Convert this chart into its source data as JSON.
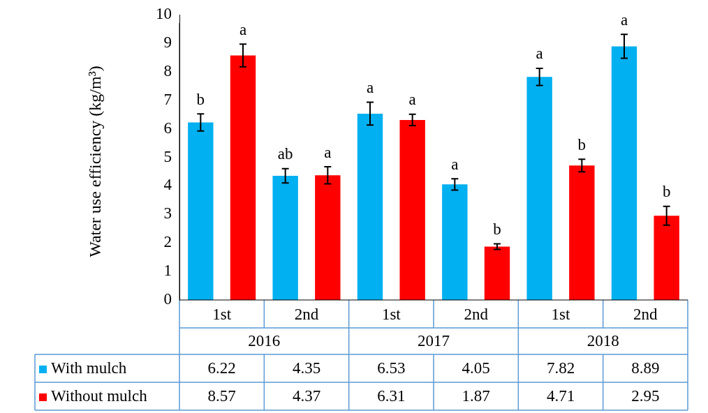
{
  "chart_data": {
    "type": "bar",
    "ylabel": "Water use efficiency (kg/m³)",
    "categories": [
      "1st",
      "2nd",
      "1st",
      "2nd",
      "1st",
      "2nd"
    ],
    "series": [
      {
        "name": "With mulch",
        "color": "#00b0f0",
        "values": [
          6.22,
          4.35,
          6.53,
          4.05,
          7.82,
          8.89
        ],
        "errors": [
          0.3,
          0.25,
          0.4,
          0.2,
          0.3,
          0.42
        ]
      },
      {
        "name": "Without mulch",
        "color": "#ff0000",
        "values": [
          8.57,
          4.37,
          6.31,
          1.87,
          4.71,
          2.95
        ],
        "errors": [
          0.4,
          0.3,
          0.2,
          0.1,
          0.22,
          0.33
        ]
      }
    ],
    "ylim": [
      0,
      10
    ],
    "yticks": [
      0,
      1,
      2,
      3,
      4,
      5,
      6,
      7,
      8,
      9,
      10
    ],
    "grid": false,
    "legend": "bottom",
    "data_labels": true,
    "annotations": [
      "2016",
      "2017",
      "2018",
      "b",
      "a",
      "ab",
      "a",
      "a",
      "a",
      "a",
      "b",
      "a",
      "b",
      "a",
      "b"
    ]
  }
}
